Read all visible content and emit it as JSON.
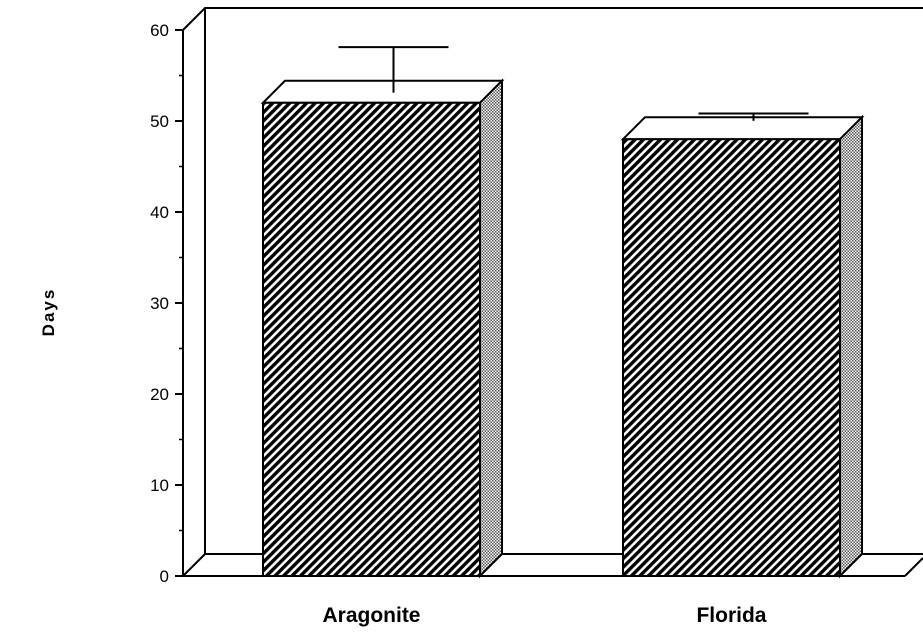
{
  "chart_data": {
    "type": "bar",
    "title": "",
    "xlabel": "",
    "ylabel": "Days",
    "categories": [
      "Aragonite",
      "Florida"
    ],
    "values": [
      52,
      48
    ],
    "error_upper": [
      3.7,
      0.4
    ],
    "error_lower": [
      1.3,
      0.4
    ],
    "ylim": [
      0,
      60
    ],
    "yticks": [
      0,
      10,
      20,
      30,
      40,
      50,
      60
    ],
    "grid": false,
    "style": "3d-hatched"
  },
  "colors": {
    "ink": "#000000",
    "background": "#ffffff"
  }
}
